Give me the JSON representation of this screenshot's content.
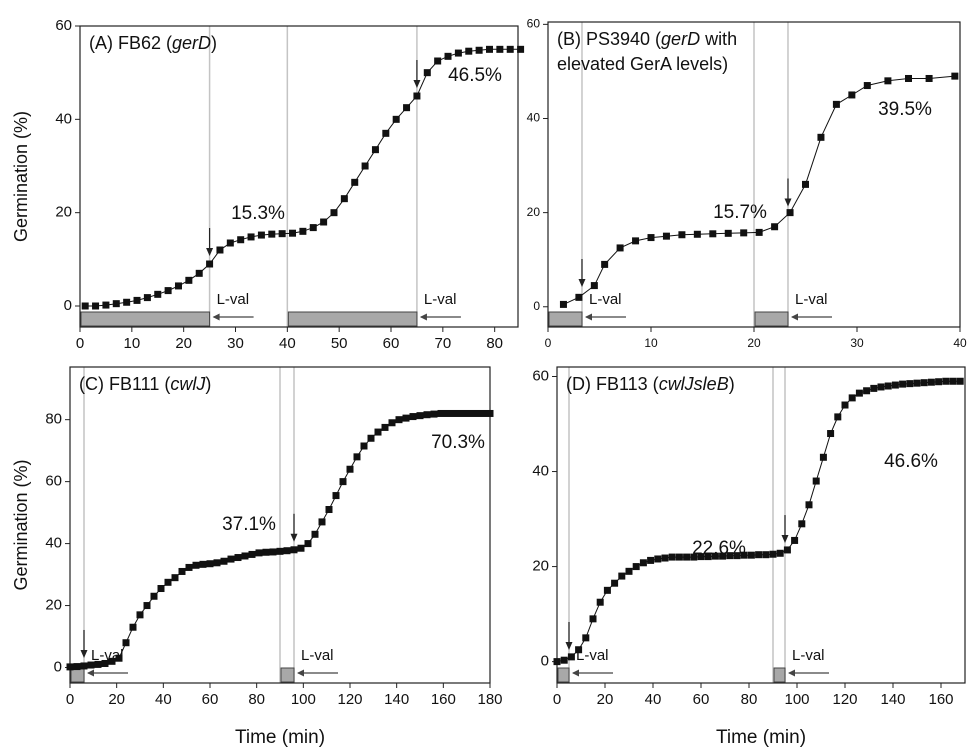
{
  "chart_data": [
    {
      "type": "line",
      "title": [
        [
          "(A) FB62 (",
          "gerD",
          ")"
        ]
      ],
      "ylabel": "Germination (%)",
      "color": "#111111",
      "x": [
        1,
        3,
        5,
        7,
        9,
        11,
        13,
        15,
        17,
        19,
        21,
        23,
        25,
        27,
        29,
        31,
        33,
        35,
        37,
        39,
        41,
        43,
        45,
        47,
        49,
        51,
        53,
        55,
        57,
        59,
        61,
        63,
        65,
        67,
        69,
        71,
        73,
        75,
        77,
        79,
        81,
        83,
        85
      ],
      "values": [
        0,
        0,
        0.2,
        0.5,
        0.8,
        1.2,
        1.8,
        2.5,
        3.3,
        4.3,
        5.5,
        7,
        9,
        12,
        13.5,
        14.2,
        14.8,
        15.2,
        15.4,
        15.5,
        15.6,
        16,
        16.8,
        18,
        20,
        23,
        26.5,
        30,
        33.5,
        37,
        40,
        42.5,
        45,
        50,
        52.5,
        53.5,
        54.2,
        54.6,
        54.8,
        55,
        55,
        55,
        55
      ],
      "xlim": [
        0,
        84.5
      ],
      "ylim": [
        -4.5,
        60
      ],
      "xticks": [
        0,
        10,
        20,
        30,
        40,
        50,
        60,
        70,
        80
      ],
      "yticks": [
        0,
        20,
        40,
        60
      ],
      "vlines": [
        25,
        40,
        65
      ],
      "injections": [
        {
          "label": "L-val",
          "start": 0,
          "end": 25
        },
        {
          "label": "L-val",
          "start": 40,
          "end": 65
        }
      ],
      "arrows": [
        25,
        65
      ],
      "annotations": [
        "15.3%",
        "46.5%"
      ]
    },
    {
      "type": "line",
      "title": [
        [
          "(B) PS3940 (",
          "gerD",
          " with"
        ],
        [
          "elevated GerA levels)"
        ]
      ],
      "color": "#111111",
      "x": [
        1.5,
        3,
        4.5,
        5.5,
        7,
        8.5,
        10,
        11.5,
        13,
        14.5,
        16,
        17.5,
        19,
        20.5,
        22,
        23.5,
        25,
        26.5,
        28,
        29.5,
        31,
        33,
        35,
        37,
        39.5
      ],
      "values": [
        0.5,
        2,
        4.5,
        9,
        12.5,
        14,
        14.7,
        15,
        15.3,
        15.4,
        15.5,
        15.6,
        15.7,
        15.8,
        17,
        20,
        26,
        36,
        43,
        45,
        47,
        48,
        48.5,
        48.5,
        49
      ],
      "xlim": [
        0,
        40
      ],
      "ylim": [
        -4.3,
        60.5
      ],
      "xticks": [
        0,
        10,
        20,
        30,
        40
      ],
      "yticks": [
        0,
        20,
        40,
        60
      ],
      "vlines": [
        3.3,
        20,
        23.3
      ],
      "injections": [
        {
          "label": "L-val",
          "start": 0,
          "end": 3.3
        },
        {
          "label": "L-val",
          "start": 20,
          "end": 23.3
        }
      ],
      "arrows": [
        3.3,
        23.3
      ],
      "annotations": [
        "15.7%",
        "39.5%"
      ]
    },
    {
      "type": "line",
      "title": [
        [
          "(C) FB111 (",
          "cwlJ",
          ")"
        ]
      ],
      "ylabel": "Germination (%)",
      "xlabel": "Time (min)",
      "color": "#111111",
      "x": [
        0,
        3,
        6,
        9,
        12,
        15,
        18,
        21,
        24,
        27,
        30,
        33,
        36,
        39,
        42,
        45,
        48,
        51,
        54,
        57,
        60,
        63,
        66,
        69,
        72,
        75,
        78,
        81,
        84,
        87,
        90,
        93,
        96,
        99,
        102,
        105,
        108,
        111,
        114,
        117,
        120,
        123,
        126,
        129,
        132,
        135,
        138,
        141,
        144,
        147,
        150,
        153,
        156,
        159,
        162,
        165,
        168,
        171,
        174,
        177,
        180
      ],
      "values": [
        0.2,
        0.3,
        0.5,
        0.8,
        1,
        1.3,
        2,
        3,
        8,
        13,
        17,
        20,
        23,
        25.5,
        27.5,
        29,
        31,
        32.3,
        33,
        33.3,
        33.5,
        33.8,
        34.3,
        35,
        35.5,
        36,
        36.5,
        37,
        37.2,
        37.3,
        37.5,
        37.7,
        38,
        38.5,
        40,
        43,
        47,
        51,
        55.5,
        60,
        64,
        68,
        71.5,
        74,
        76,
        77.5,
        79,
        80,
        80.5,
        81,
        81.3,
        81.6,
        81.8,
        82,
        82,
        82,
        82,
        82,
        82,
        82,
        82
      ],
      "xlim": [
        0,
        180
      ],
      "ylim": [
        -5,
        97
      ],
      "xticks": [
        0,
        20,
        40,
        60,
        80,
        100,
        120,
        140,
        160,
        180
      ],
      "yticks": [
        0,
        20,
        40,
        60,
        80
      ],
      "vlines": [
        6,
        90,
        96
      ],
      "injections": [
        {
          "label": "L-val",
          "start": 0,
          "end": 6
        },
        {
          "label": "L-val",
          "start": 90,
          "end": 96
        }
      ],
      "arrows": [
        6,
        96
      ],
      "annotations": [
        "37.1%",
        "70.3%"
      ]
    },
    {
      "type": "line",
      "title": [
        [
          "(D) FB113 (",
          "cwlJsleB",
          ")"
        ]
      ],
      "xlabel": "Time (min)",
      "color": "#111111",
      "x": [
        0,
        3,
        6,
        9,
        12,
        15,
        18,
        21,
        24,
        27,
        30,
        33,
        36,
        39,
        42,
        45,
        48,
        51,
        54,
        57,
        60,
        63,
        66,
        69,
        72,
        75,
        78,
        81,
        84,
        87,
        90,
        93,
        96,
        99,
        102,
        105,
        108,
        111,
        114,
        117,
        120,
        123,
        126,
        129,
        132,
        135,
        138,
        141,
        144,
        147,
        150,
        153,
        156,
        159,
        162,
        165,
        168
      ],
      "values": [
        0,
        0.3,
        1,
        2.5,
        5,
        9,
        12.5,
        15,
        16.5,
        18,
        19,
        20,
        20.8,
        21.3,
        21.6,
        21.8,
        22,
        22,
        22,
        22,
        22.1,
        22.1,
        22.2,
        22.2,
        22.3,
        22.3,
        22.4,
        22.4,
        22.5,
        22.5,
        22.6,
        22.8,
        23.5,
        25.5,
        29,
        33,
        38,
        43,
        48,
        51.5,
        54,
        55.5,
        56.5,
        57,
        57.5,
        57.8,
        58,
        58.2,
        58.4,
        58.5,
        58.6,
        58.7,
        58.8,
        58.9,
        59,
        59,
        59
      ],
      "xlim": [
        0,
        170
      ],
      "ylim": [
        -4.5,
        62
      ],
      "xticks": [
        0,
        20,
        40,
        60,
        80,
        100,
        120,
        140,
        160
      ],
      "yticks": [
        0,
        20,
        40,
        60
      ],
      "vlines": [
        5,
        90,
        95
      ],
      "injections": [
        {
          "label": "L-val",
          "start": 0,
          "end": 5
        },
        {
          "label": "L-val",
          "start": 90,
          "end": 95
        }
      ],
      "arrows": [
        5,
        95
      ],
      "annotations": [
        "22.6%",
        "46.6%"
      ]
    }
  ]
}
